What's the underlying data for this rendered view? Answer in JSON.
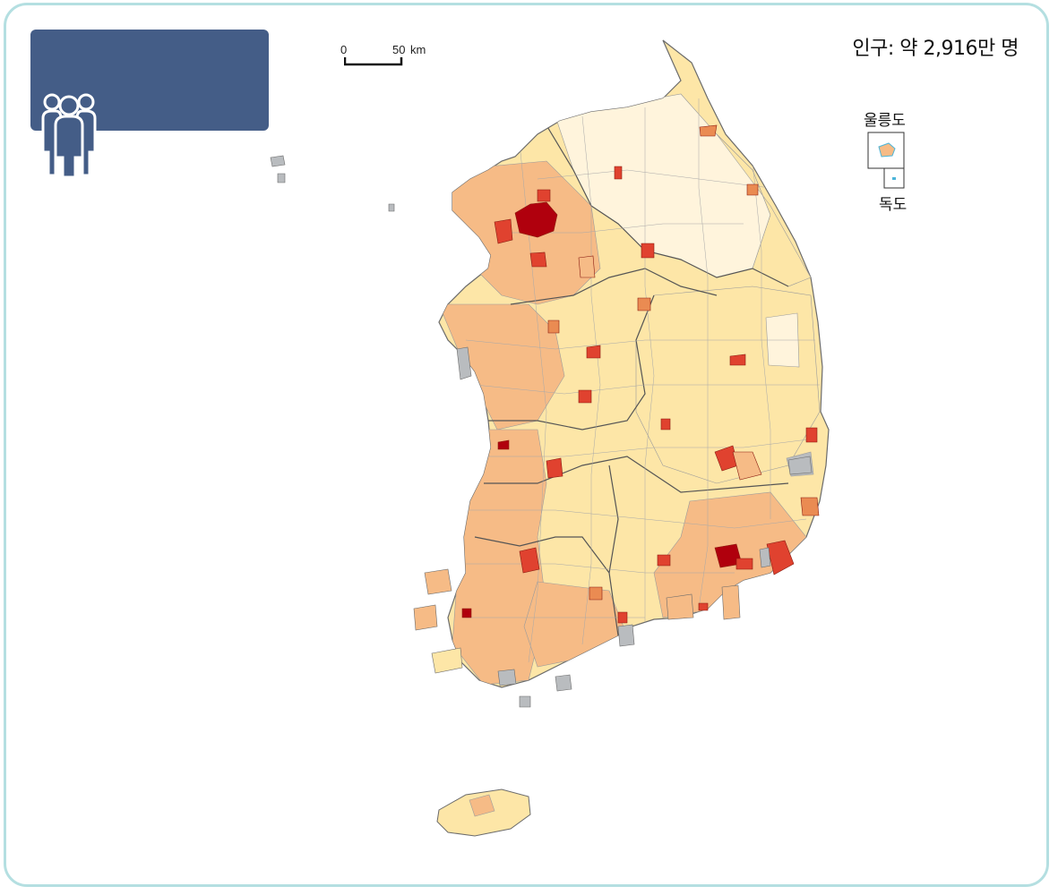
{
  "population_label": "인구: 약 2,916만 명",
  "scale": {
    "zero": "0",
    "distance": "50",
    "unit": "km"
  },
  "insets": {
    "ulleungdo": "울릉도",
    "dokdo": "독도"
  },
  "icon": "people-group-icon",
  "colors": {
    "frame": "#b4dfe1",
    "header": "#445d87",
    "level1": "#fff4dc",
    "level2": "#fde6a7",
    "level3": "#f6bb86",
    "level4": "#ea8b52",
    "level5": "#e0422f",
    "level6": "#b0000d",
    "nodata": "#b9bcbf",
    "border": "#6b6b6b",
    "water": "#4cb5d9"
  }
}
